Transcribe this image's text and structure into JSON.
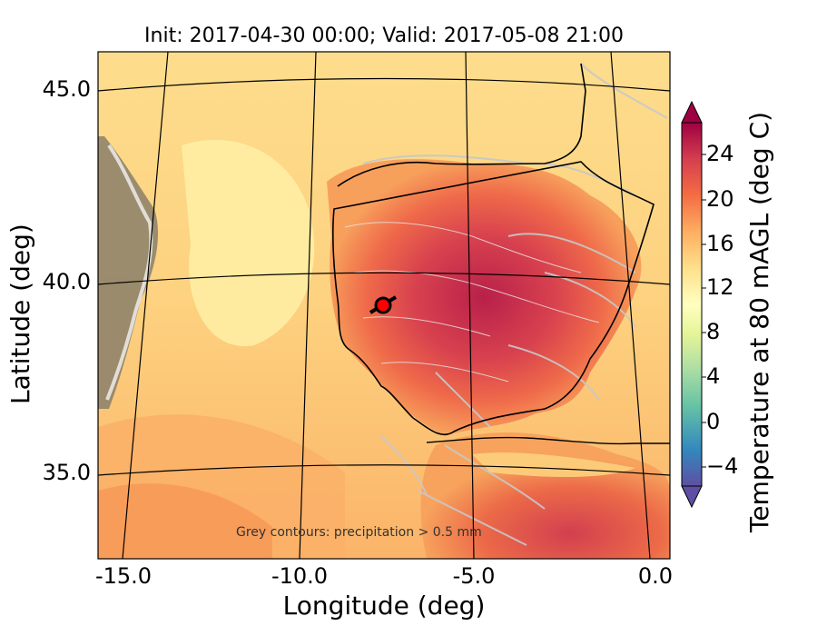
{
  "title": "Init: 2017-04-30 00:00; Valid: 2017-05-08 21:00",
  "x_axis": {
    "label": "Longitude (deg)",
    "ticks": [
      "-15.0",
      "-10.0",
      "-5.0",
      "0.0"
    ]
  },
  "y_axis": {
    "label": "Latitude (deg)",
    "ticks": [
      "45.0",
      "40.0",
      "35.0"
    ]
  },
  "colorbar": {
    "label": "Temperature at 80 mAGL (deg C)",
    "ticks": [
      "24",
      "20",
      "16",
      "12",
      "8",
      "4",
      "0",
      "−4"
    ],
    "colors": [
      "#5e4fa2",
      "#3288bd",
      "#66c2a5",
      "#abdda4",
      "#e6f598",
      "#ffffbf",
      "#fee08b",
      "#fdae61",
      "#f46d43",
      "#d53e4f",
      "#9e0142"
    ]
  },
  "annotation": "Grey contours: precipitation  > 0.5 mm",
  "marker": {
    "name": "site-marker",
    "color": "#ff0000"
  }
}
